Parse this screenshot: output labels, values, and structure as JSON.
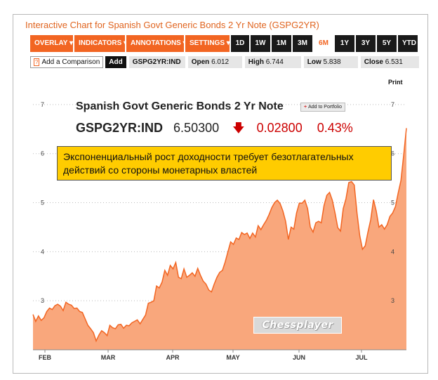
{
  "header": {
    "title": "Interactive Chart for Spanish Govt Generic Bonds 2 Yr Note (GSPG2YR)"
  },
  "toolbar": {
    "menus": [
      "OVERLAY ▾",
      "INDICATORS ▾",
      "ANNOTATIONS ▾",
      "SETTINGS ▾"
    ],
    "ranges": [
      "1D",
      "1W",
      "1M",
      "3M",
      "6M",
      "1Y",
      "3Y",
      "5Y",
      "YTD"
    ],
    "active_range": "6M"
  },
  "compare": {
    "placeholder": "Add a Comparison",
    "help_mark": "?",
    "add_label": "Add",
    "symbol": "GSPG2YR:IND"
  },
  "stats": {
    "open_label": "Open",
    "open": "6.012",
    "high_label": "High",
    "high": "6.744",
    "low_label": "Low",
    "low": "5.838",
    "close_label": "Close",
    "close": "6.531"
  },
  "print_label": "Print",
  "quote": {
    "name": "Spanish Govt Generic Bonds 2 Yr Note",
    "portfolio_label": "Add to Portfolio",
    "ticker": "GSPG2YR:IND",
    "price": "6.50300",
    "change": "0.02800",
    "change_pct": "0.43%"
  },
  "annotation": "Экспоненциальный рост доходности требует безотлагательных действий со стороны монетарных властей",
  "watermark": "Chessplayer",
  "colors": {
    "accent": "#f26522",
    "area_fill": "#f9a77c",
    "area_line": "#f26522",
    "down": "#cc0000",
    "note_bg": "#ffcc00"
  },
  "chart_data": {
    "type": "area",
    "title": "",
    "xlabel": "",
    "ylabel": "",
    "x_ticks": [
      "FEB",
      "MAR",
      "APR",
      "MAY",
      "JUN",
      "JUL"
    ],
    "y_ticks": [
      3,
      4,
      5,
      6,
      7
    ],
    "ylim": [
      2.0,
      7.7
    ],
    "grid": "horizontal dotted",
    "series": [
      {
        "values": [
          2.72,
          2.58,
          2.69,
          2.6,
          2.65,
          2.78,
          2.85,
          2.82,
          2.9,
          2.93,
          2.89,
          2.8,
          2.97,
          2.93,
          2.91,
          2.84,
          2.85,
          2.78,
          2.76,
          2.63,
          2.5,
          2.43,
          2.35,
          2.18,
          2.3,
          2.39,
          2.35,
          2.29,
          2.5,
          2.45,
          2.43,
          2.51,
          2.52,
          2.44,
          2.5,
          2.49,
          2.55,
          2.58,
          2.61,
          2.53,
          2.62,
          2.71,
          2.95,
          2.97,
          3.0,
          3.3,
          3.26,
          3.38,
          3.62,
          3.52,
          3.72,
          3.65,
          3.78,
          3.48,
          3.45,
          3.65,
          3.48,
          3.52,
          3.57,
          3.5,
          3.66,
          3.52,
          3.4,
          3.34,
          3.22,
          3.18,
          3.34,
          3.48,
          3.58,
          3.62,
          3.79,
          4.0,
          4.2,
          4.15,
          4.28,
          4.25,
          4.39,
          4.35,
          4.38,
          4.27,
          4.38,
          4.3,
          4.53,
          4.45,
          4.55,
          4.64,
          4.76,
          4.9,
          5.0,
          5.05,
          4.98,
          4.83,
          4.62,
          4.25,
          4.5,
          4.46,
          4.79,
          4.99,
          4.99,
          5.05,
          4.88,
          4.5,
          4.4,
          4.59,
          4.62,
          4.59,
          4.94,
          5.15,
          5.21,
          5.05,
          4.79,
          4.49,
          4.42,
          4.88,
          5.08,
          5.41,
          5.43,
          5.36,
          4.79,
          4.33,
          4.05,
          4.12,
          4.4,
          4.65,
          5.06,
          4.83,
          4.5,
          4.55,
          4.46,
          4.55,
          4.72,
          4.79,
          4.92,
          5.2,
          5.45,
          5.97,
          6.52
        ]
      }
    ]
  }
}
